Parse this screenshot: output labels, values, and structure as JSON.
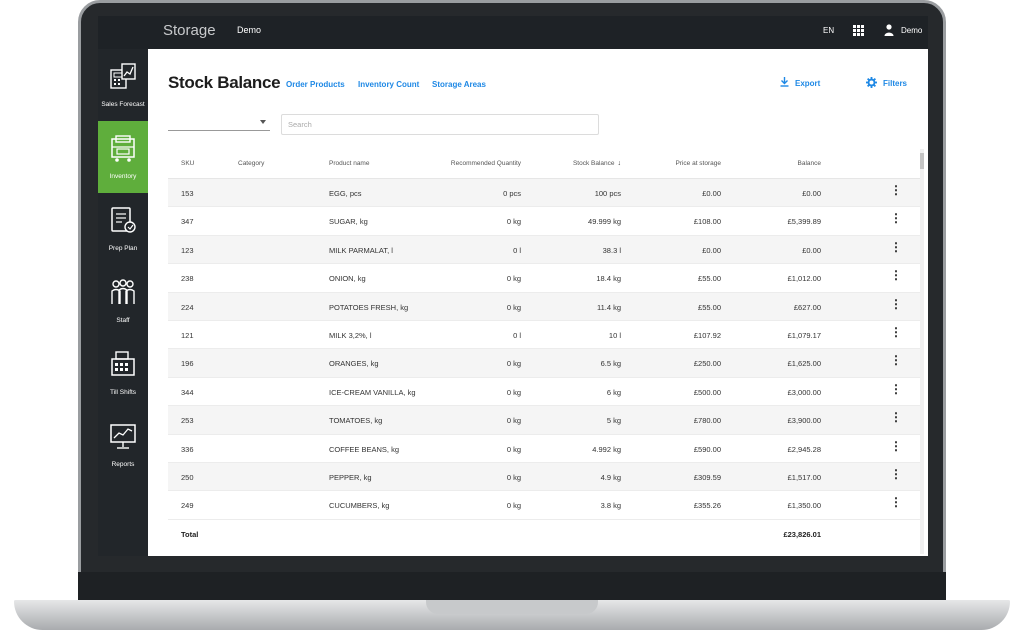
{
  "topbar": {
    "brand": "Storage",
    "org": "Demo",
    "lang": "EN",
    "user": "Demo"
  },
  "sidebar": {
    "items": [
      {
        "label": "Sales Forecast",
        "icon": "sales-forecast-icon",
        "active": false
      },
      {
        "label": "Inventory",
        "icon": "inventory-icon",
        "active": true
      },
      {
        "label": "Prep Plan",
        "icon": "prep-plan-icon",
        "active": false
      },
      {
        "label": "Staff",
        "icon": "staff-icon",
        "active": false
      },
      {
        "label": "Till Shifts",
        "icon": "till-shifts-icon",
        "active": false
      },
      {
        "label": "Reports",
        "icon": "reports-icon",
        "active": false
      }
    ]
  },
  "header": {
    "title": "Stock Balance",
    "tabs": [
      "Order Products",
      "Inventory Count",
      "Storage Areas"
    ],
    "export_label": "Export",
    "filters_label": "Filters"
  },
  "controls": {
    "dropdown_value": "",
    "search_placeholder": "Search"
  },
  "table": {
    "columns": {
      "sku": "SKU",
      "category": "Category",
      "product": "Product name",
      "recommended": "Recommended Quantity",
      "stock_balance": "Stock Balance",
      "price": "Price at storage",
      "balance": "Balance"
    },
    "sort_arrow": "↓",
    "menu_glyph": "⋮",
    "rows": [
      {
        "sku": "153",
        "category": "",
        "product": "EGG, pcs",
        "recommended": "0 pcs",
        "stock_balance": "100 pcs",
        "price": "£0.00",
        "balance": "£0.00"
      },
      {
        "sku": "347",
        "category": "",
        "product": "SUGAR, kg",
        "recommended": "0 kg",
        "stock_balance": "49.999 kg",
        "price": "£108.00",
        "balance": "£5,399.89"
      },
      {
        "sku": "123",
        "category": "",
        "product": "MILK PARMALAT, l",
        "recommended": "0 l",
        "stock_balance": "38.3 l",
        "price": "£0.00",
        "balance": "£0.00"
      },
      {
        "sku": "238",
        "category": "",
        "product": "ONION, kg",
        "recommended": "0 kg",
        "stock_balance": "18.4 kg",
        "price": "£55.00",
        "balance": "£1,012.00"
      },
      {
        "sku": "224",
        "category": "",
        "product": "POTATOES FRESH, kg",
        "recommended": "0 kg",
        "stock_balance": "11.4 kg",
        "price": "£55.00",
        "balance": "£627.00"
      },
      {
        "sku": "121",
        "category": "",
        "product": "MILK 3,2%, l",
        "recommended": "0 l",
        "stock_balance": "10 l",
        "price": "£107.92",
        "balance": "£1,079.17"
      },
      {
        "sku": "196",
        "category": "",
        "product": "ORANGES, kg",
        "recommended": "0 kg",
        "stock_balance": "6.5 kg",
        "price": "£250.00",
        "balance": "£1,625.00"
      },
      {
        "sku": "344",
        "category": "",
        "product": "ICE-CREAM VANILLA, kg",
        "recommended": "0 kg",
        "stock_balance": "6 kg",
        "price": "£500.00",
        "balance": "£3,000.00"
      },
      {
        "sku": "253",
        "category": "",
        "product": "TOMATOES, kg",
        "recommended": "0 kg",
        "stock_balance": "5 kg",
        "price": "£780.00",
        "balance": "£3,900.00"
      },
      {
        "sku": "336",
        "category": "",
        "product": "COFFEE BEANS, kg",
        "recommended": "0 kg",
        "stock_balance": "4.992 kg",
        "price": "£590.00",
        "balance": "£2,945.28"
      },
      {
        "sku": "250",
        "category": "",
        "product": "PEPPER, kg",
        "recommended": "0 kg",
        "stock_balance": "4.9 kg",
        "price": "£309.59",
        "balance": "£1,517.00"
      },
      {
        "sku": "249",
        "category": "",
        "product": "CUCUMBERS, kg",
        "recommended": "0 kg",
        "stock_balance": "3.8 kg",
        "price": "£355.26",
        "balance": "£1,350.00"
      }
    ],
    "total_label": "Total",
    "total_value": "£23,826.01"
  }
}
